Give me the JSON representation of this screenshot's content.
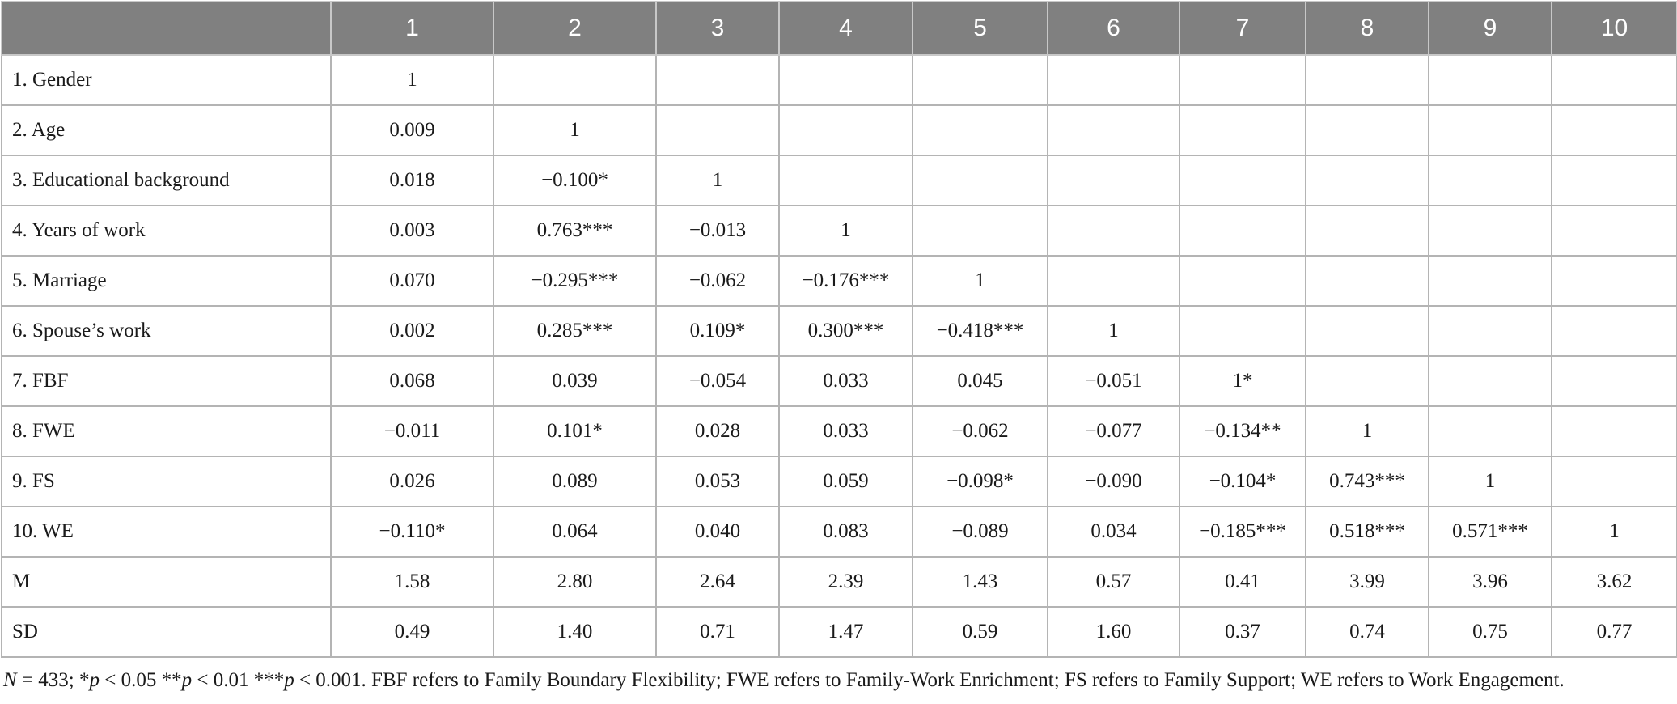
{
  "table": {
    "header": [
      null,
      "1",
      "2",
      "3",
      "4",
      "5",
      "6",
      "7",
      "8",
      "9",
      "10"
    ],
    "rows": [
      [
        "1. Gender",
        "1",
        null,
        null,
        null,
        null,
        null,
        null,
        null,
        null,
        null
      ],
      [
        "2. Age",
        "0.009",
        "1",
        null,
        null,
        null,
        null,
        null,
        null,
        null,
        null
      ],
      [
        "3. Educational background",
        "0.018",
        "−0.100*",
        "1",
        null,
        null,
        null,
        null,
        null,
        null,
        null
      ],
      [
        "4. Years of work",
        "0.003",
        "0.763***",
        "−0.013",
        "1",
        null,
        null,
        null,
        null,
        null,
        null
      ],
      [
        "5. Marriage",
        "0.070",
        "−0.295***",
        "−0.062",
        "−0.176***",
        "1",
        null,
        null,
        null,
        null,
        null
      ],
      [
        "6. Spouse’s work",
        "0.002",
        "0.285***",
        "0.109*",
        "0.300***",
        "−0.418***",
        "1",
        null,
        null,
        null,
        null
      ],
      [
        "7. FBF",
        "0.068",
        "0.039",
        "−0.054",
        "0.033",
        "0.045",
        "−0.051",
        "1*",
        null,
        null,
        null
      ],
      [
        "8. FWE",
        "−0.011",
        "0.101*",
        "0.028",
        "0.033",
        "−0.062",
        "−0.077",
        "−0.134**",
        "1",
        null,
        null
      ],
      [
        "9. FS",
        "0.026",
        "0.089",
        "0.053",
        "0.059",
        "−0.098*",
        "−0.090",
        "−0.104*",
        "0.743***",
        "1",
        null
      ],
      [
        "10. WE",
        "−0.110*",
        "0.064",
        "0.040",
        "0.083",
        "−0.089",
        "0.034",
        "−0.185***",
        "0.518***",
        "0.571***",
        "1"
      ],
      [
        "M",
        "1.58",
        "2.80",
        "2.64",
        "2.39",
        "1.43",
        "0.57",
        "0.41",
        "3.99",
        "3.96",
        "3.62"
      ],
      [
        "SD",
        "0.49",
        "1.40",
        "0.71",
        "1.47",
        "0.59",
        "1.60",
        "0.37",
        "0.74",
        "0.75",
        "0.77"
      ]
    ]
  },
  "footnote": [
    "N",
    " = 433; *",
    "p",
    " < 0.05 **",
    "p",
    " < 0.01 ***",
    "p",
    " < 0.001. FBF refers to Family Boundary Flexibility; FWE refers to Family-Work Enrichment; FS refers to Family Support; WE refers to Work Engagement."
  ]
}
